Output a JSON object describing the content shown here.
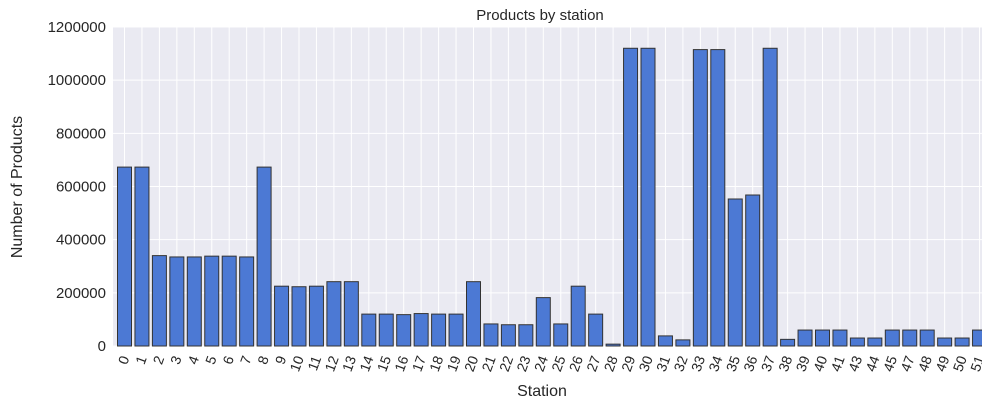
{
  "chart_data": {
    "type": "bar",
    "title": "Products by station",
    "xlabel": "Station",
    "ylabel": "Number of Products",
    "ylim": [
      0,
      1200000
    ],
    "yticks": [
      "0",
      "200000",
      "400000",
      "600000",
      "800000",
      "1000000",
      "1200000"
    ],
    "grid": true,
    "legend": "none",
    "categories": [
      "0",
      "1",
      "2",
      "3",
      "4",
      "5",
      "6",
      "7",
      "8",
      "9",
      "10",
      "11",
      "12",
      "13",
      "14",
      "15",
      "16",
      "17",
      "18",
      "19",
      "20",
      "21",
      "22",
      "23",
      "24",
      "25",
      "26",
      "27",
      "28",
      "29",
      "30",
      "31",
      "32",
      "33",
      "34",
      "35",
      "36",
      "37",
      "38",
      "39",
      "40",
      "41",
      "43",
      "44",
      "45",
      "47",
      "48",
      "49",
      "50",
      "51"
    ],
    "values": [
      673000,
      673000,
      340000,
      335000,
      335000,
      338000,
      338000,
      335000,
      673000,
      225000,
      223000,
      225000,
      242000,
      242000,
      120000,
      120000,
      118000,
      122000,
      120000,
      120000,
      242000,
      83000,
      80000,
      80000,
      182000,
      83000,
      225000,
      120000,
      7000,
      1120000,
      1120000,
      38000,
      23000,
      1115000,
      1115000,
      553000,
      568000,
      1120000,
      25000,
      60000,
      60000,
      60000,
      30000,
      30000,
      60000,
      60000,
      60000,
      30000,
      30000,
      60000
    ],
    "colors": {
      "bar": "#4c79d4",
      "plot_bg": "#eaeaf2",
      "grid": "#ffffff"
    }
  }
}
